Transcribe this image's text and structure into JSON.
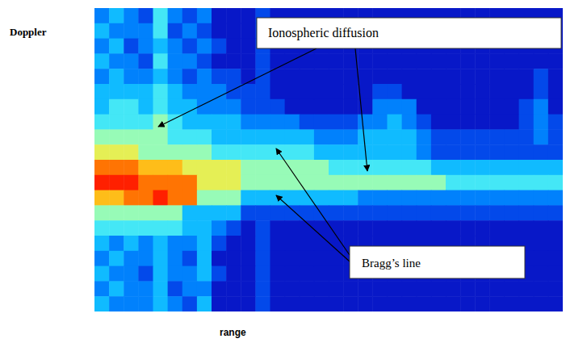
{
  "chart_data": {
    "type": "heatmap",
    "xlabel": "range",
    "ylabel": "Doppler",
    "tick_labels": false,
    "annotations": [
      {
        "text": "Ionospheric diffusion"
      },
      {
        "text": "Bragg’s line"
      }
    ],
    "cells": [
      [
        3,
        4,
        3,
        2,
        5,
        3,
        2,
        3,
        1,
        1,
        1,
        2,
        1,
        1,
        1,
        1,
        1,
        1,
        1,
        1,
        1,
        1,
        1,
        1,
        1,
        1,
        1,
        1,
        1,
        1,
        1,
        1
      ],
      [
        4,
        3,
        3,
        3,
        5,
        2,
        3,
        2,
        1,
        1,
        1,
        2,
        1,
        1,
        1,
        1,
        1,
        1,
        1,
        1,
        1,
        1,
        1,
        1,
        1,
        1,
        1,
        1,
        1,
        1,
        1,
        1
      ],
      [
        3,
        4,
        2,
        3,
        4,
        3,
        2,
        3,
        2,
        1,
        1,
        2,
        1,
        1,
        1,
        1,
        1,
        1,
        1,
        1,
        1,
        1,
        1,
        1,
        1,
        1,
        1,
        1,
        1,
        1,
        1,
        1
      ],
      [
        4,
        3,
        3,
        2,
        5,
        3,
        3,
        2,
        1,
        1,
        1,
        2,
        1,
        1,
        1,
        1,
        1,
        1,
        1,
        1,
        1,
        1,
        1,
        1,
        1,
        1,
        1,
        1,
        1,
        1,
        1,
        1
      ],
      [
        3,
        4,
        3,
        3,
        4,
        3,
        2,
        3,
        2,
        2,
        1,
        2,
        1,
        1,
        1,
        1,
        1,
        1,
        1,
        1,
        1,
        1,
        1,
        1,
        1,
        1,
        1,
        1,
        1,
        1,
        2,
        1
      ],
      [
        4,
        4,
        4,
        4,
        5,
        4,
        3,
        3,
        3,
        2,
        2,
        2,
        1,
        1,
        1,
        1,
        1,
        1,
        1,
        2,
        2,
        1,
        1,
        1,
        1,
        1,
        1,
        1,
        1,
        1,
        2,
        1
      ],
      [
        4,
        5,
        5,
        4,
        5,
        4,
        4,
        3,
        3,
        3,
        2,
        2,
        2,
        1,
        1,
        1,
        1,
        1,
        1,
        3,
        3,
        3,
        1,
        1,
        1,
        1,
        1,
        1,
        1,
        2,
        3,
        1
      ],
      [
        5,
        5,
        5,
        5,
        6,
        5,
        4,
        4,
        4,
        4,
        3,
        3,
        3,
        3,
        2,
        2,
        2,
        2,
        3,
        3,
        4,
        3,
        2,
        1,
        1,
        1,
        1,
        1,
        1,
        2,
        3,
        2
      ],
      [
        6,
        6,
        6,
        6,
        6,
        5,
        5,
        5,
        4,
        4,
        4,
        4,
        4,
        4,
        4,
        3,
        3,
        3,
        4,
        4,
        4,
        4,
        3,
        2,
        2,
        2,
        2,
        2,
        2,
        2,
        3,
        2
      ],
      [
        7,
        7,
        7,
        6,
        6,
        6,
        6,
        6,
        5,
        5,
        5,
        5,
        5,
        5,
        5,
        4,
        4,
        4,
        4,
        4,
        4,
        4,
        3,
        2,
        2,
        2,
        2,
        2,
        2,
        2,
        2,
        2
      ],
      [
        9,
        9,
        9,
        8,
        8,
        8,
        7,
        7,
        7,
        7,
        6,
        6,
        6,
        6,
        6,
        6,
        5,
        5,
        5,
        5,
        5,
        5,
        5,
        4,
        4,
        4,
        4,
        4,
        4,
        4,
        4,
        4
      ],
      [
        10,
        10,
        10,
        9,
        9,
        9,
        9,
        7,
        7,
        7,
        6,
        6,
        6,
        6,
        6,
        6,
        6,
        6,
        6,
        6,
        6,
        6,
        6,
        6,
        5,
        5,
        5,
        5,
        5,
        5,
        5,
        5
      ],
      [
        8,
        8,
        9,
        9,
        10,
        9,
        9,
        6,
        6,
        6,
        4,
        4,
        4,
        4,
        4,
        4,
        4,
        4,
        3,
        3,
        3,
        3,
        3,
        3,
        3,
        3,
        3,
        3,
        3,
        3,
        3,
        3
      ],
      [
        6,
        6,
        6,
        6,
        6,
        6,
        4,
        4,
        4,
        4,
        2,
        2,
        2,
        2,
        2,
        2,
        2,
        2,
        2,
        2,
        2,
        2,
        2,
        2,
        2,
        2,
        2,
        2,
        2,
        2,
        2,
        2
      ],
      [
        5,
        5,
        5,
        5,
        5,
        5,
        4,
        4,
        3,
        2,
        1,
        2,
        1,
        1,
        1,
        1,
        1,
        1,
        1,
        1,
        1,
        1,
        1,
        1,
        1,
        1,
        1,
        1,
        1,
        1,
        1,
        1
      ],
      [
        4,
        3,
        4,
        3,
        4,
        3,
        3,
        4,
        2,
        1,
        1,
        2,
        1,
        1,
        1,
        1,
        1,
        1,
        1,
        1,
        1,
        1,
        1,
        1,
        1,
        1,
        1,
        1,
        1,
        1,
        1,
        1
      ],
      [
        3,
        4,
        3,
        3,
        4,
        3,
        2,
        4,
        1,
        1,
        1,
        2,
        1,
        1,
        1,
        1,
        1,
        1,
        1,
        1,
        1,
        1,
        1,
        1,
        1,
        1,
        1,
        1,
        1,
        1,
        1,
        1
      ],
      [
        4,
        3,
        3,
        2,
        4,
        3,
        3,
        4,
        2,
        1,
        1,
        2,
        1,
        1,
        1,
        1,
        1,
        1,
        1,
        1,
        1,
        1,
        1,
        1,
        1,
        1,
        1,
        1,
        1,
        1,
        1,
        1
      ],
      [
        3,
        4,
        3,
        3,
        4,
        2,
        3,
        3,
        1,
        1,
        1,
        2,
        1,
        1,
        1,
        1,
        1,
        1,
        1,
        1,
        1,
        1,
        1,
        1,
        1,
        1,
        1,
        1,
        1,
        1,
        1,
        1
      ],
      [
        4,
        3,
        3,
        3,
        4,
        3,
        2,
        4,
        1,
        1,
        1,
        2,
        1,
        1,
        1,
        1,
        1,
        1,
        1,
        1,
        1,
        1,
        1,
        1,
        1,
        1,
        1,
        1,
        1,
        1,
        1,
        1
      ]
    ]
  }
}
